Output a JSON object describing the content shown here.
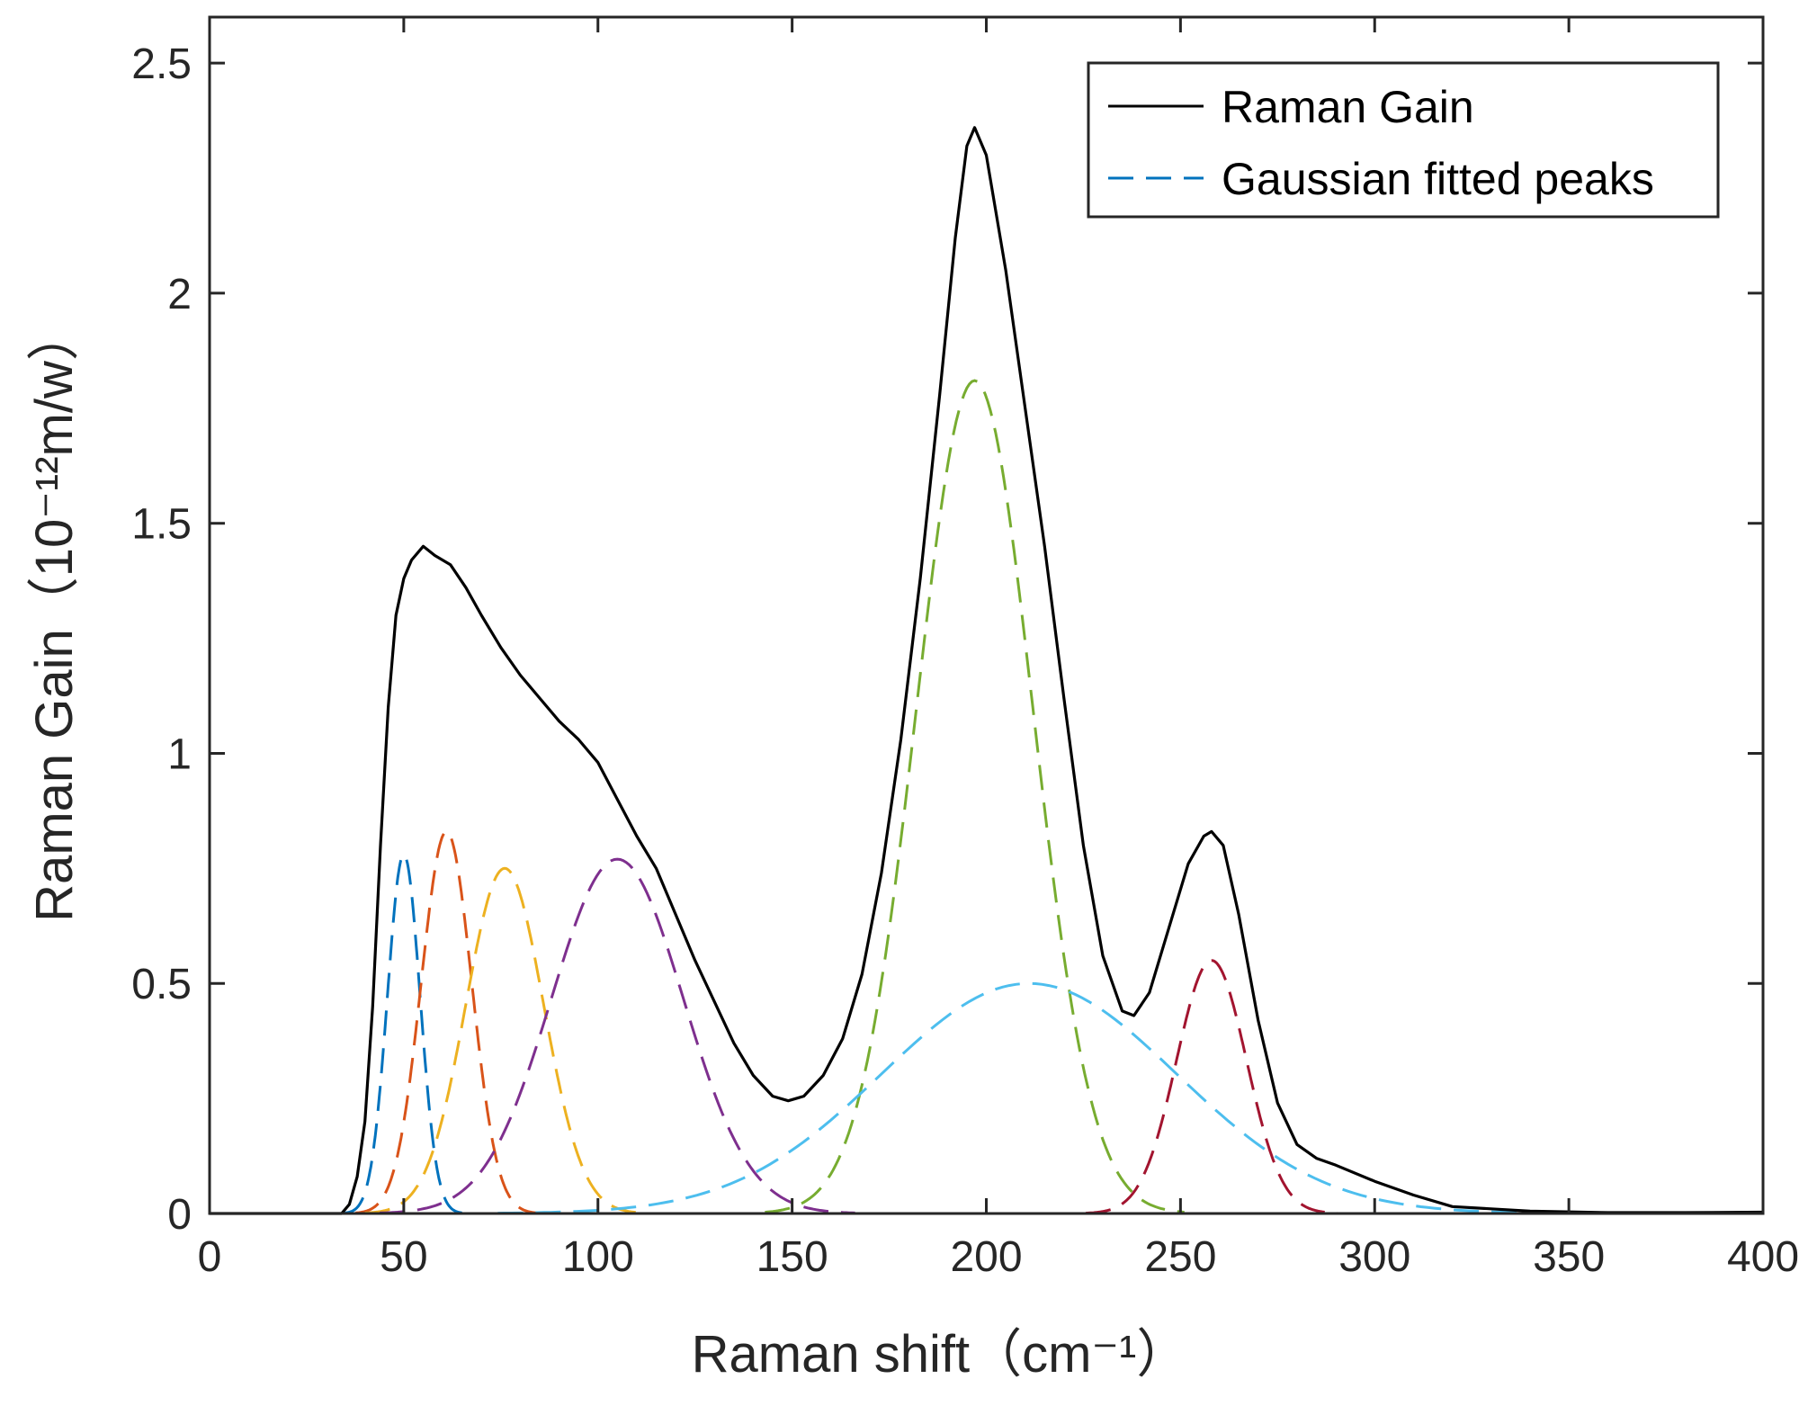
{
  "chart_data": {
    "type": "line",
    "title": "",
    "xlabel": "Raman shift（cm⁻¹）",
    "ylabel": "Raman Gain（10⁻¹²m/w）",
    "xlim": [
      0,
      400
    ],
    "ylim": [
      0,
      2.6
    ],
    "xticks": [
      0,
      50,
      100,
      150,
      200,
      250,
      300,
      350,
      400
    ],
    "yticks": [
      0,
      0.5,
      1,
      1.5,
      2,
      2.5
    ],
    "xtick_labels": [
      "0",
      "50",
      "100",
      "150",
      "200",
      "250",
      "300",
      "350",
      "400"
    ],
    "ytick_labels": [
      "0",
      "0.5",
      "1",
      "1.5",
      "2",
      "2.5"
    ],
    "grid": false,
    "legend": {
      "location": "top-right",
      "entries": [
        "Raman Gain",
        "Gaussian fitted peaks"
      ]
    },
    "series": [
      {
        "name": "Raman Gain",
        "style": "solid",
        "color": "#000000",
        "points": [
          [
            0,
            0
          ],
          [
            34,
            0
          ],
          [
            36,
            0.02
          ],
          [
            38,
            0.08
          ],
          [
            40,
            0.2
          ],
          [
            42,
            0.45
          ],
          [
            44,
            0.8
          ],
          [
            46,
            1.1
          ],
          [
            48,
            1.3
          ],
          [
            50,
            1.38
          ],
          [
            52,
            1.42
          ],
          [
            55,
            1.45
          ],
          [
            58,
            1.43
          ],
          [
            62,
            1.41
          ],
          [
            66,
            1.36
          ],
          [
            70,
            1.3
          ],
          [
            75,
            1.23
          ],
          [
            80,
            1.17
          ],
          [
            85,
            1.12
          ],
          [
            90,
            1.07
          ],
          [
            95,
            1.03
          ],
          [
            100,
            0.98
          ],
          [
            105,
            0.9
          ],
          [
            110,
            0.82
          ],
          [
            115,
            0.75
          ],
          [
            120,
            0.65
          ],
          [
            125,
            0.55
          ],
          [
            130,
            0.46
          ],
          [
            135,
            0.37
          ],
          [
            140,
            0.3
          ],
          [
            145,
            0.255
          ],
          [
            149,
            0.245
          ],
          [
            153,
            0.255
          ],
          [
            158,
            0.3
          ],
          [
            163,
            0.38
          ],
          [
            168,
            0.52
          ],
          [
            173,
            0.74
          ],
          [
            178,
            1.03
          ],
          [
            183,
            1.38
          ],
          [
            188,
            1.78
          ],
          [
            192,
            2.12
          ],
          [
            195,
            2.32
          ],
          [
            197,
            2.36
          ],
          [
            200,
            2.3
          ],
          [
            205,
            2.05
          ],
          [
            210,
            1.75
          ],
          [
            215,
            1.45
          ],
          [
            220,
            1.12
          ],
          [
            225,
            0.8
          ],
          [
            230,
            0.56
          ],
          [
            235,
            0.44
          ],
          [
            238,
            0.43
          ],
          [
            242,
            0.48
          ],
          [
            247,
            0.62
          ],
          [
            252,
            0.76
          ],
          [
            256,
            0.82
          ],
          [
            258,
            0.83
          ],
          [
            261,
            0.8
          ],
          [
            265,
            0.65
          ],
          [
            270,
            0.42
          ],
          [
            275,
            0.24
          ],
          [
            280,
            0.15
          ],
          [
            285,
            0.12
          ],
          [
            290,
            0.105
          ],
          [
            300,
            0.07
          ],
          [
            310,
            0.04
          ],
          [
            320,
            0.015
          ],
          [
            340,
            0.005
          ],
          [
            360,
            0.002
          ],
          [
            380,
            0.002
          ],
          [
            400,
            0.003
          ]
        ]
      }
    ],
    "gaussian_peaks": [
      {
        "name": "Gaussian fitted peaks",
        "center": 50,
        "amplitude": 0.78,
        "sigma": 4.2,
        "color": "#0072BD"
      },
      {
        "center": 61,
        "amplitude": 0.83,
        "sigma": 6.5,
        "color": "#D95319"
      },
      {
        "center": 76,
        "amplitude": 0.75,
        "sigma": 10,
        "color": "#EDB120"
      },
      {
        "center": 105,
        "amplitude": 0.77,
        "sigma": 17,
        "color": "#7E2F8E"
      },
      {
        "center": 197,
        "amplitude": 1.81,
        "sigma": 15,
        "color": "#77AC30"
      },
      {
        "center": 211,
        "amplitude": 0.5,
        "sigma": 38,
        "color": "#4DBEEE"
      },
      {
        "center": 258,
        "amplitude": 0.55,
        "sigma": 9,
        "color": "#A2142F"
      }
    ]
  }
}
